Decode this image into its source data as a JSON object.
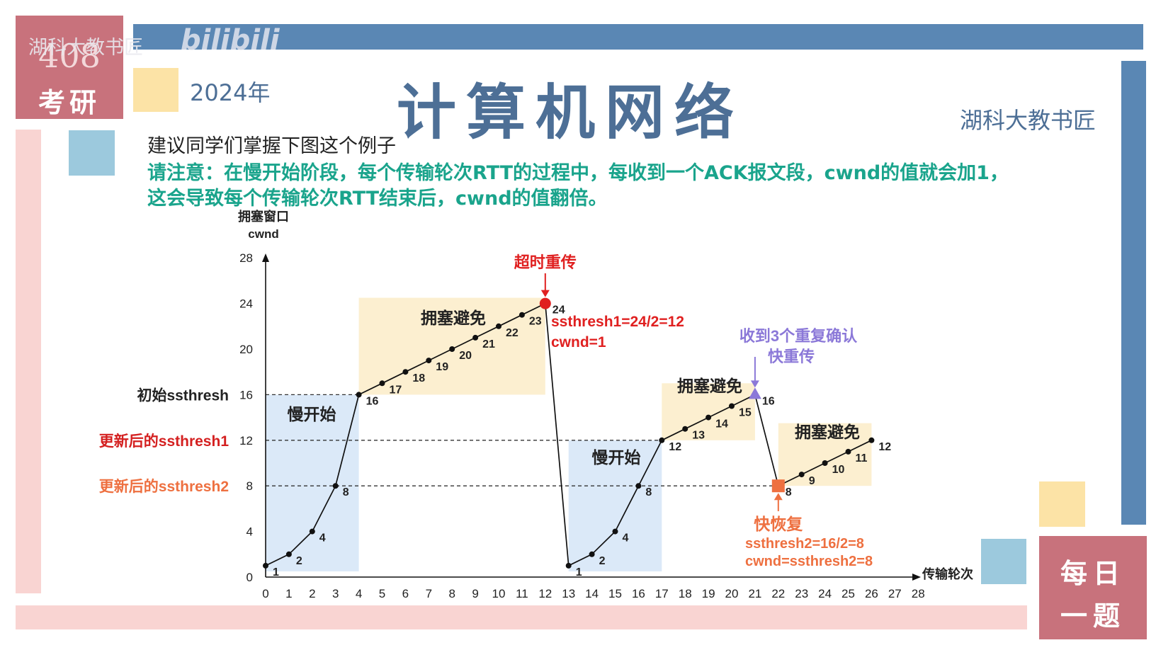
{
  "watermark": {
    "channel": "湖科大教书匠",
    "platform": "bilibili"
  },
  "badge_top_left": {
    "number": "408",
    "label": "考研"
  },
  "header": {
    "year": "2024年",
    "title": "计算机网络",
    "author": "湖科大教书匠"
  },
  "intro": {
    "line1": "建议同学们掌握下图这个例子",
    "note_line1": "请注意：在慢开始阶段，每个传输轮次RTT的过程中，每收到一个ACK报文段，cwnd的值就会加1，",
    "note_line2": "这会导致每个传输轮次RTT结束后，cwnd的值翻倍。"
  },
  "badge_bottom_right": {
    "line1": "每日",
    "line2": "一题"
  },
  "colors": {
    "accent_blue": "#5a87b4",
    "rose": "#c8727c",
    "pink": "#f9d4d2",
    "light_yellow": "#fce3a6",
    "light_blue": "#9cc9dd",
    "teal_text": "#1aa48c",
    "red": "#e02020",
    "orange": "#ee7040",
    "purple": "#8b78d8",
    "slow_start_fill": "#dbe9f8",
    "congestion_avoid_fill": "#fcefd0"
  },
  "chart_data": {
    "type": "line",
    "ylabel_line1": "拥塞窗口",
    "ylabel_line2": "cwnd",
    "xlabel": "传输轮次",
    "xlim": [
      0,
      28
    ],
    "ylim": [
      0,
      28
    ],
    "xticks": [
      0,
      1,
      2,
      3,
      4,
      5,
      6,
      7,
      8,
      9,
      10,
      11,
      12,
      13,
      14,
      15,
      16,
      17,
      18,
      19,
      20,
      21,
      22,
      23,
      24,
      25,
      26,
      27,
      28
    ],
    "yticks": [
      0,
      4,
      8,
      12,
      16,
      20,
      24,
      28
    ],
    "series": [
      {
        "points": [
          {
            "x": 0,
            "y": 1,
            "label": "1"
          },
          {
            "x": 1,
            "y": 2,
            "label": "2"
          },
          {
            "x": 2,
            "y": 4,
            "label": "4"
          },
          {
            "x": 3,
            "y": 8,
            "label": "8"
          },
          {
            "x": 4,
            "y": 16,
            "label": "16"
          },
          {
            "x": 5,
            "y": 17,
            "label": "17"
          },
          {
            "x": 6,
            "y": 18,
            "label": "18"
          },
          {
            "x": 7,
            "y": 19,
            "label": "19"
          },
          {
            "x": 8,
            "y": 20,
            "label": "20"
          },
          {
            "x": 9,
            "y": 21,
            "label": "21"
          },
          {
            "x": 10,
            "y": 22,
            "label": "22"
          },
          {
            "x": 11,
            "y": 23,
            "label": "23"
          },
          {
            "x": 12,
            "y": 24,
            "label": "24"
          },
          {
            "x": 13,
            "y": 1,
            "label": "1"
          },
          {
            "x": 14,
            "y": 2,
            "label": "2"
          },
          {
            "x": 15,
            "y": 4,
            "label": "4"
          },
          {
            "x": 16,
            "y": 8,
            "label": "8"
          },
          {
            "x": 17,
            "y": 12,
            "label": "12"
          },
          {
            "x": 18,
            "y": 13,
            "label": "13"
          },
          {
            "x": 19,
            "y": 14,
            "label": "14"
          },
          {
            "x": 20,
            "y": 15,
            "label": "15"
          },
          {
            "x": 21,
            "y": 16,
            "label": "16"
          },
          {
            "x": 22,
            "y": 8,
            "label": "8"
          },
          {
            "x": 23,
            "y": 9,
            "label": "9"
          },
          {
            "x": 24,
            "y": 10,
            "label": "10"
          },
          {
            "x": 25,
            "y": 11,
            "label": "11"
          },
          {
            "x": 26,
            "y": 12,
            "label": "12"
          }
        ]
      }
    ],
    "thresholds": [
      {
        "y": 16,
        "label": "初始ssthresh",
        "color": "#222222",
        "x_end": 4
      },
      {
        "y": 12,
        "label": "更新后的ssthresh1",
        "color": "#d42020",
        "x_end": 17
      },
      {
        "y": 8,
        "label": "更新后的ssthresh2",
        "color": "#ee7040",
        "x_end": 22
      }
    ],
    "regions": [
      {
        "kind": "slow_start",
        "label": "慢开始",
        "x0": 0,
        "x1": 4,
        "y0": 0.5,
        "y1": 16
      },
      {
        "kind": "congestion_avoid",
        "label": "拥塞避免",
        "x0": 4,
        "x1": 12,
        "y0": 16,
        "y1": 24.5
      },
      {
        "kind": "slow_start",
        "label": "慢开始",
        "x0": 13,
        "x1": 17,
        "y0": 0.5,
        "y1": 12
      },
      {
        "kind": "congestion_avoid",
        "label": "拥塞避免",
        "x0": 17,
        "x1": 21,
        "y0": 12,
        "y1": 17
      },
      {
        "kind": "congestion_avoid",
        "label": "拥塞避免",
        "x0": 22,
        "x1": 26,
        "y0": 8,
        "y1": 13.5
      }
    ],
    "events": {
      "timeout": {
        "title": "超时重传",
        "detail1": "ssthresh1=24/2=12",
        "detail2": "cwnd=1",
        "x": 12,
        "y": 24
      },
      "dup_ack": {
        "line1": "收到3个重复确认",
        "line2": "快重传",
        "x": 21,
        "y": 16
      },
      "fast_recovery": {
        "title": "快恢复",
        "detail1": "ssthresh2=16/2=8",
        "detail2": "cwnd=ssthresh2=8",
        "x": 22,
        "y": 8
      }
    }
  }
}
